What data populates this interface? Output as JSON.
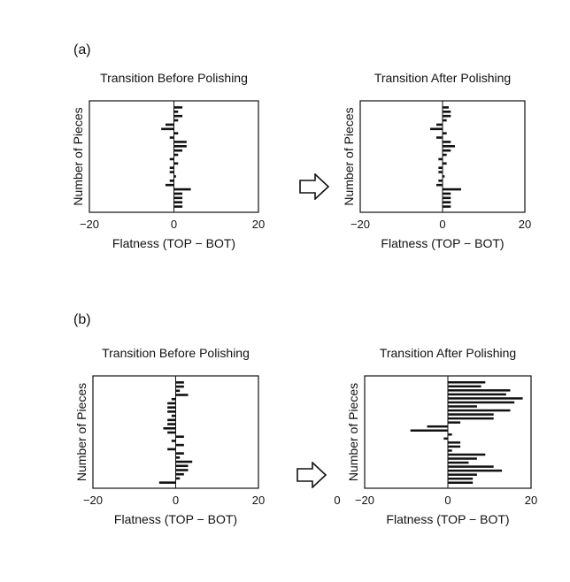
{
  "panel_labels": [
    "(a)",
    "(b)"
  ],
  "arrow_icon": "right-arrow-icon",
  "chart_data": [
    {
      "type": "bar",
      "orientation": "horizontal",
      "panel": "(a)",
      "title": "Transition Before Polishing",
      "xlabel": "Flatness (TOP − BOT)",
      "ylabel": "Number of Pieces",
      "xlim": [
        -20,
        20
      ],
      "xticks": [
        "−20",
        "0",
        "20"
      ],
      "grid": false,
      "values": [
        2,
        1,
        2,
        1,
        -2,
        -3,
        1,
        -1,
        3,
        3,
        2,
        1,
        -1,
        1,
        -1,
        -1,
        0.5,
        -1,
        -2,
        4,
        2,
        2,
        2,
        2
      ]
    },
    {
      "type": "bar",
      "orientation": "horizontal",
      "panel": "(a)",
      "title": "Transition After Polishing",
      "xlabel": "Flatness (TOP − BOT)",
      "ylabel": "Number of Pieces",
      "xlim": [
        -20,
        20
      ],
      "xticks": [
        "−20",
        "0",
        "20"
      ],
      "grid": false,
      "values": [
        1.5,
        2,
        2,
        1,
        -1.5,
        -3,
        1,
        -1.5,
        2,
        3,
        2,
        1,
        -1,
        1,
        -1,
        -1,
        0.5,
        -1,
        -1.5,
        4.5,
        2,
        2,
        2,
        2
      ]
    },
    {
      "type": "bar",
      "orientation": "horizontal",
      "panel": "(b)",
      "title": "Transition Before Polishing",
      "xlabel": "Flatness (TOP − BOT)",
      "ylabel": "Number of Pieces",
      "xlim": [
        -20,
        20
      ],
      "xticks": [
        "−20",
        "0",
        "20"
      ],
      "grid": false,
      "values": [
        2,
        2,
        1,
        3,
        -1,
        -2,
        -2,
        -2,
        -1,
        -2,
        -2,
        -3,
        -2,
        2,
        -1,
        2,
        -2,
        2,
        1,
        4,
        3,
        3,
        2,
        1,
        -4
      ]
    },
    {
      "type": "bar",
      "orientation": "horizontal",
      "panel": "(b)",
      "title": "Transition After Polishing",
      "xlabel": "Flatness (TOP − BOT)",
      "ylabel": "Number of Pieces",
      "xlim": [
        -20,
        20
      ],
      "xticks": [
        "0",
        "−20",
        "0",
        "20"
      ],
      "grid": false,
      "values": [
        9,
        8,
        15,
        14,
        18,
        16,
        7,
        15,
        11,
        11,
        3,
        -5,
        -9,
        1,
        -1,
        3,
        3,
        1,
        9,
        7,
        5,
        11,
        13,
        7,
        6,
        6
      ]
    }
  ]
}
